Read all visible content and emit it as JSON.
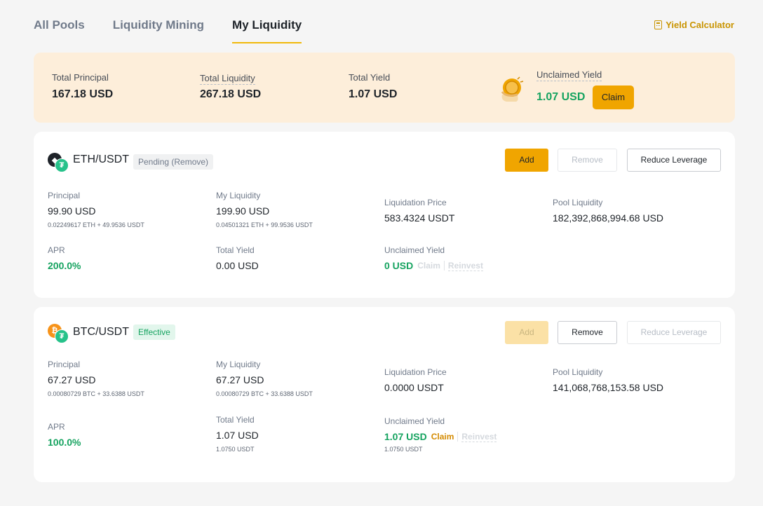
{
  "tabs": [
    "All Pools",
    "Liquidity Mining",
    "My Liquidity"
  ],
  "yield_calculator": "Yield Calculator",
  "summary": {
    "total_principal_label": "Total Principal",
    "total_principal": "167.18 USD",
    "total_liquidity_label": "Total Liquidity",
    "total_liquidity": "267.18 USD",
    "total_yield_label": "Total Yield",
    "total_yield": "1.07 USD",
    "unclaimed_label": "Unclaimed Yield",
    "unclaimed": "1.07 USD",
    "claim": "Claim"
  },
  "pools": [
    {
      "pair": "ETH/USDT",
      "status": "Pending (Remove)",
      "buttons": {
        "add": "Add",
        "remove": "Remove",
        "reduce": "Reduce Leverage"
      },
      "principal_label": "Principal",
      "principal": "99.90 USD",
      "principal_sub": "0.02249617 ETH + 49.9536 USDT",
      "my_liquidity_label": "My Liquidity",
      "my_liquidity": "199.90 USD",
      "my_liquidity_sub": "0.04501321 ETH + 99.9536 USDT",
      "liq_price_label": "Liquidation Price",
      "liq_price": "583.4324 USDT",
      "pool_liq_label": "Pool Liquidity",
      "pool_liq": "182,392,868,994.68 USD",
      "apr_label": "APR",
      "apr": "200.0%",
      "total_yield_label": "Total Yield",
      "total_yield": "0.00 USD",
      "unclaimed_label": "Unclaimed Yield",
      "unclaimed": "0 USD",
      "claim": "Claim",
      "reinvest": "Reinvest"
    },
    {
      "pair": "BTC/USDT",
      "status": "Effective",
      "buttons": {
        "add": "Add",
        "remove": "Remove",
        "reduce": "Reduce Leverage"
      },
      "principal_label": "Principal",
      "principal": "67.27 USD",
      "principal_sub": "0.00080729 BTC + 33.6388 USDT",
      "my_liquidity_label": "My Liquidity",
      "my_liquidity": "67.27 USD",
      "my_liquidity_sub": "0.00080729 BTC + 33.6388 USDT",
      "liq_price_label": "Liquidation Price",
      "liq_price": "0.0000 USDT",
      "pool_liq_label": "Pool Liquidity",
      "pool_liq": "141,068,768,153.58 USD",
      "apr_label": "APR",
      "apr": "100.0%",
      "total_yield_label": "Total Yield",
      "total_yield": "1.07 USD",
      "total_yield_sub": "1.0750 USDT",
      "unclaimed_label": "Unclaimed Yield",
      "unclaimed": "1.07 USD",
      "unclaimed_sub": "1.0750 USDT",
      "claim": "Claim",
      "reinvest": "Reinvest"
    }
  ],
  "icons": {
    "eth": "ethereum-icon",
    "btc": "bitcoin-icon",
    "usdt": "tether-icon",
    "calculator": "calculator-icon",
    "coin": "coin-hand-icon"
  },
  "colors": {
    "accent": "#f0a500",
    "green": "#16a360",
    "summary_bg": "#fdeeda"
  }
}
